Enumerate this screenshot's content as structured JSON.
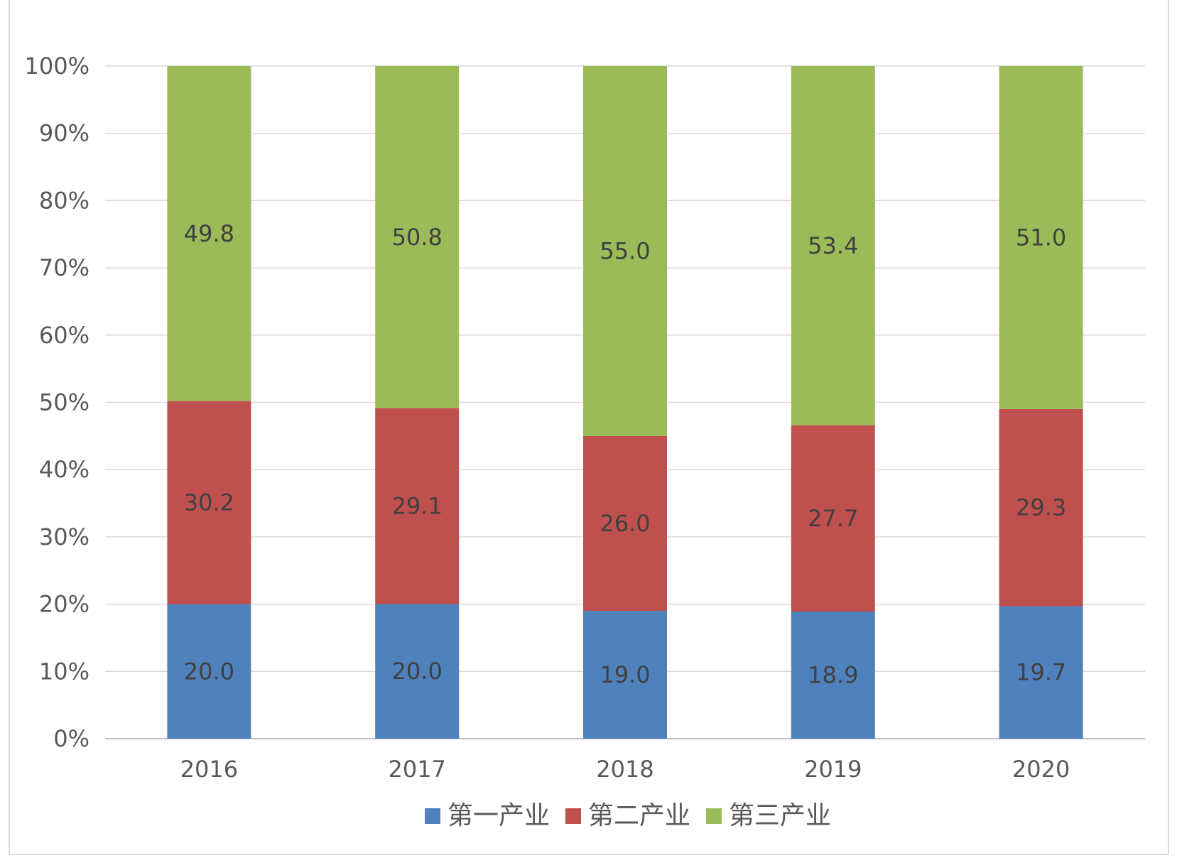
{
  "chart_data": {
    "type": "bar",
    "stacked": "percent",
    "categories": [
      "2016",
      "2017",
      "2018",
      "2019",
      "2020"
    ],
    "series": [
      {
        "name": "第一产业",
        "color": "#4f81bd",
        "values": [
          20.0,
          20.0,
          19.0,
          18.9,
          19.7
        ]
      },
      {
        "name": "第二产业",
        "color": "#c0504d",
        "values": [
          30.2,
          29.1,
          26.0,
          27.7,
          29.3
        ]
      },
      {
        "name": "第三产业",
        "color": "#9bbb59",
        "values": [
          49.8,
          50.8,
          55.0,
          53.4,
          51.0
        ]
      }
    ],
    "y_ticks": [
      "0%",
      "10%",
      "20%",
      "30%",
      "40%",
      "50%",
      "60%",
      "70%",
      "80%",
      "90%",
      "100%"
    ],
    "ylim": [
      0,
      100
    ],
    "grid": true,
    "legend": "bottom",
    "title": "",
    "xlabel": "",
    "ylabel": ""
  }
}
